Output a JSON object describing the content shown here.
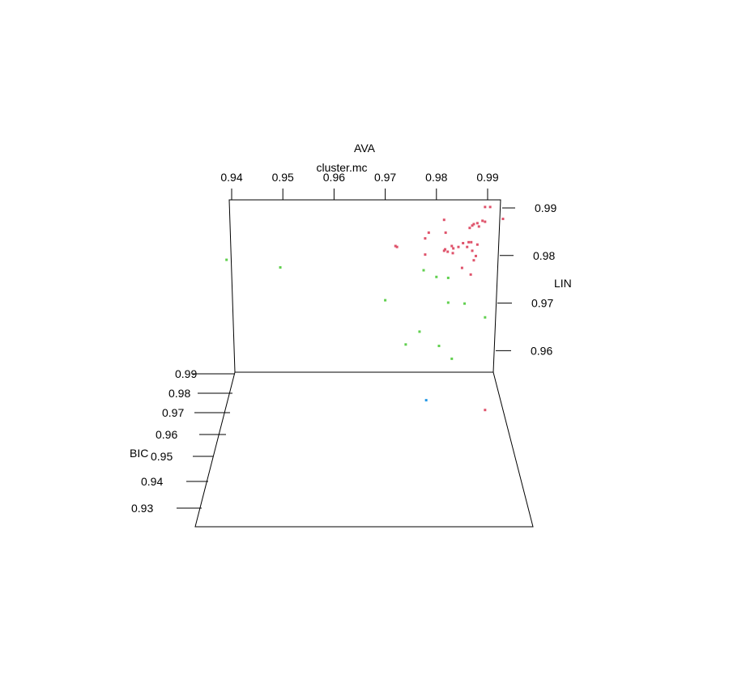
{
  "chart_data": {
    "type": "scatter",
    "title": "cluster.mc",
    "axes": {
      "x": {
        "label": "AVA",
        "ticks": [
          "0.94",
          "0.95",
          "0.96",
          "0.97",
          "0.98",
          "0.99"
        ]
      },
      "y": {
        "label": "LIN",
        "ticks": [
          "0.99",
          "0.98",
          "0.97",
          "0.96"
        ]
      },
      "z": {
        "label": "BIC",
        "ticks": [
          "0.99",
          "0.98",
          "0.97",
          "0.96",
          "0.95",
          "0.94",
          "0.93"
        ]
      }
    },
    "colors": {
      "1": "#DF536B",
      "2": "#61D04F",
      "3": "#2297E6"
    },
    "series": [
      {
        "color_key": "1",
        "points": [
          [
            0.9895,
            0.9902
          ],
          [
            0.9905,
            0.9902
          ],
          [
            0.993,
            0.9877
          ],
          [
            0.9815,
            0.9875
          ],
          [
            0.989,
            0.9873
          ],
          [
            0.9895,
            0.9871
          ],
          [
            0.988,
            0.9868
          ],
          [
            0.9873,
            0.9866
          ],
          [
            0.987,
            0.9863
          ],
          [
            0.9883,
            0.9861
          ],
          [
            0.9865,
            0.9858
          ],
          [
            0.9785,
            0.9848
          ],
          [
            0.9818,
            0.9848
          ],
          [
            0.9778,
            0.9836
          ],
          [
            0.9863,
            0.9828
          ],
          [
            0.9852,
            0.9826
          ],
          [
            0.9868,
            0.9828
          ],
          [
            0.988,
            0.9823
          ],
          [
            0.983,
            0.982
          ],
          [
            0.972,
            0.982
          ],
          [
            0.9723,
            0.9818
          ],
          [
            0.9833,
            0.9815
          ],
          [
            0.9817,
            0.9813
          ],
          [
            0.9843,
            0.9818
          ],
          [
            0.986,
            0.9818
          ],
          [
            0.9822,
            0.9808
          ],
          [
            0.9815,
            0.981
          ],
          [
            0.9778,
            0.9802
          ],
          [
            0.9873,
            0.979
          ],
          [
            0.985,
            0.9774
          ],
          [
            0.9867,
            0.976
          ],
          [
            0.9877,
            0.9799
          ],
          [
            0.9832,
            0.9805
          ],
          [
            0.987,
            0.981
          ]
        ]
      },
      {
        "color_key": "2",
        "points": [
          [
            0.939,
            0.9791
          ],
          [
            0.9495,
            0.9775
          ],
          [
            0.9775,
            0.9769
          ],
          [
            0.98,
            0.9755
          ],
          [
            0.9823,
            0.9753
          ],
          [
            0.97,
            0.9706
          ],
          [
            0.9823,
            0.9701
          ],
          [
            0.9855,
            0.9699
          ],
          [
            0.9895,
            0.967
          ],
          [
            0.9767,
            0.964
          ],
          [
            0.974,
            0.9613
          ],
          [
            0.9805,
            0.961
          ],
          [
            0.983,
            0.9583
          ]
        ]
      }
    ],
    "floor_points": [
      {
        "color_key": "3",
        "ava": 0.978,
        "bic": 0.9776
      },
      {
        "color_key": "1",
        "ava": 0.9895,
        "bic": 0.973
      }
    ]
  }
}
